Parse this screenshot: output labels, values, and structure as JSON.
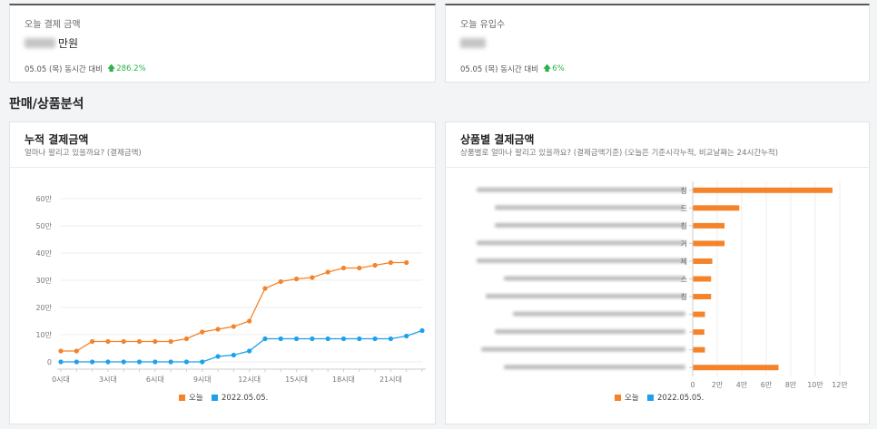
{
  "stats": [
    {
      "label": "오늘 결제 금액",
      "unit": "만원",
      "compare_text": "05.05 (목) 동시간 대비",
      "change": "286.2%"
    },
    {
      "label": "오늘 유입수",
      "unit": "",
      "compare_text": "05.05 (목) 동시간 대비",
      "change": "6%"
    }
  ],
  "section_title": "판매/상품분석",
  "cumulative": {
    "title": "누적 결제금액",
    "subtitle": "얼마나 팔리고 있을까요? (결제금액)",
    "legend": [
      "오늘",
      "2022.05.05."
    ]
  },
  "by_product": {
    "title": "상품별 결제금액",
    "subtitle": "상품별로 얼마나 팔리고 있을까요? (결제금액기준) (오늘은 기준시각누적, 비교날짜는 24시간누적)",
    "legend": [
      "오늘",
      "2022.05.05."
    ]
  },
  "colors": {
    "today": "#f5832a",
    "compare": "#1ea0ee",
    "up": "#2bb24c"
  },
  "chart_data": [
    {
      "type": "line",
      "x": [
        0,
        1,
        2,
        3,
        4,
        5,
        6,
        7,
        8,
        9,
        10,
        11,
        12,
        13,
        14,
        15,
        16,
        17,
        18,
        19,
        20,
        21,
        22,
        23
      ],
      "xticks": [
        0,
        3,
        6,
        9,
        12,
        15,
        18,
        21
      ],
      "xtick_labels": [
        "0시대",
        "3시대",
        "6시대",
        "9시대",
        "12시대",
        "15시대",
        "18시대",
        "21시대"
      ],
      "ylim": [
        0,
        600000
      ],
      "yticks": [
        0,
        100000,
        200000,
        300000,
        400000,
        500000,
        600000
      ],
      "ytick_labels": [
        "0",
        "10만",
        "20만",
        "30만",
        "40만",
        "50만",
        "60만"
      ],
      "grid": true,
      "legend_position": "bottom",
      "series": [
        {
          "name": "오늘",
          "values": [
            40000,
            40000,
            75000,
            75000,
            75000,
            75000,
            75000,
            75000,
            85000,
            110000,
            120000,
            130000,
            150000,
            270000,
            295000,
            305000,
            310000,
            330000,
            345000,
            345000,
            355000,
            365000,
            365000,
            null
          ]
        },
        {
          "name": "2022.05.05.",
          "values": [
            0,
            0,
            0,
            0,
            0,
            0,
            0,
            0,
            0,
            0,
            20000,
            25000,
            40000,
            85000,
            85000,
            85000,
            85000,
            85000,
            85000,
            85000,
            85000,
            85000,
            95000,
            115000
          ]
        }
      ]
    },
    {
      "type": "bar",
      "orientation": "horizontal",
      "categories": [
        "칭",
        "드",
        "칭",
        "거",
        "제",
        "스",
        "칭",
        "",
        "",
        "",
        ""
      ],
      "xlim": [
        0,
        120000
      ],
      "xticks": [
        0,
        20000,
        40000,
        60000,
        80000,
        100000,
        120000
      ],
      "xtick_labels": [
        "0",
        "2만",
        "4만",
        "6만",
        "8만",
        "10만",
        "12만"
      ],
      "grid": true,
      "legend_position": "bottom",
      "series": [
        {
          "name": "오늘",
          "values": [
            114000,
            38000,
            26000,
            26000,
            16000,
            15000,
            15000,
            10000,
            9500,
            10000,
            70000
          ]
        }
      ]
    }
  ]
}
